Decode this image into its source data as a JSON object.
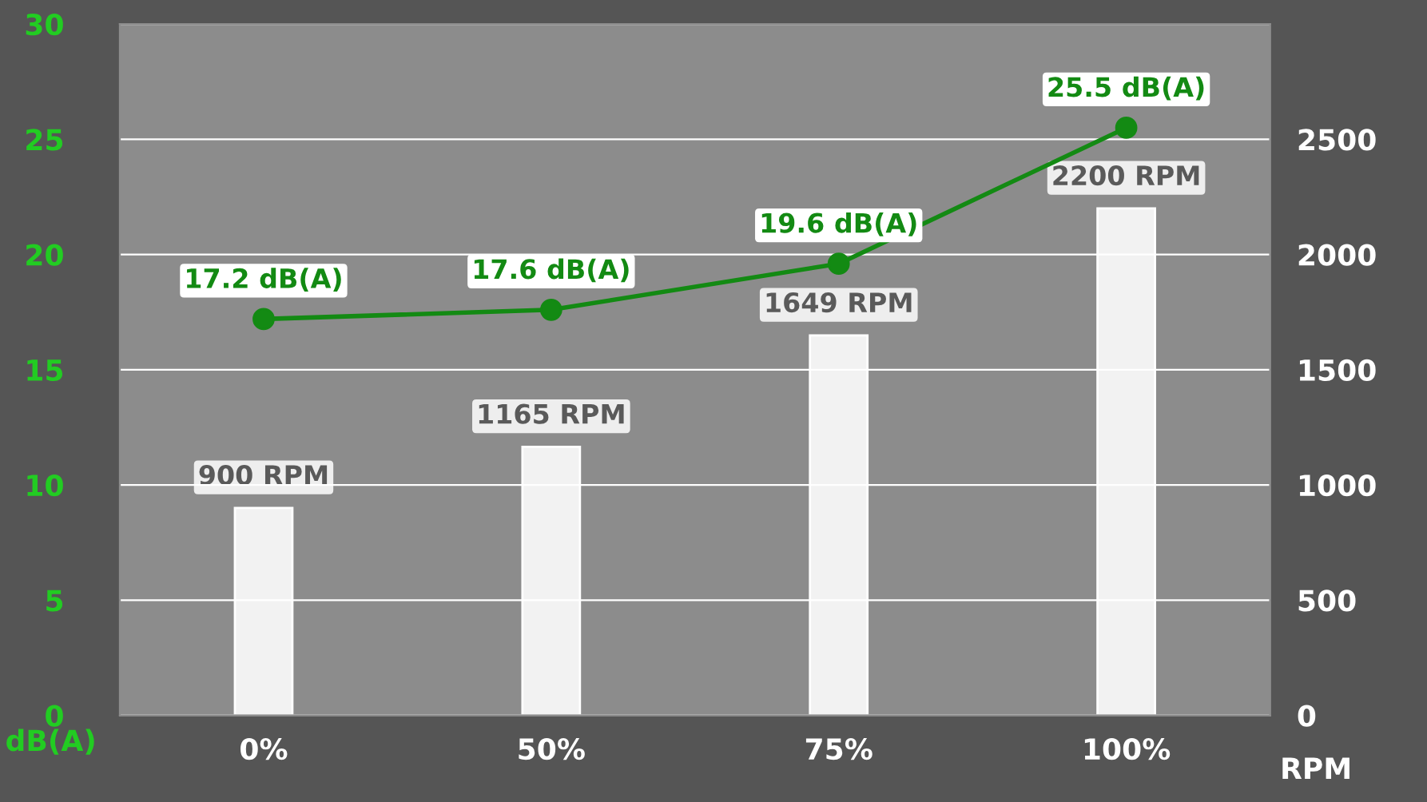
{
  "chart_data": {
    "type": "bar",
    "categories": [
      "0%",
      "50%",
      "75%",
      "100%"
    ],
    "series": [
      {
        "axis": "y2",
        "color": "#f2f2f2",
        "values": [
          900,
          1165,
          1649,
          2200
        ],
        "value_labels": [
          "900 RPM",
          "1165 RPM",
          "1649 RPM",
          "2200 RPM"
        ]
      },
      {
        "type": "line",
        "axis": "y",
        "color": "#138a13",
        "marker": "circle",
        "values": [
          17.2,
          17.6,
          19.6,
          25.5
        ],
        "value_labels": [
          "17.2 dB(A)",
          "17.6 dB(A)",
          "19.6 dB(A)",
          "25.5 dB(A)"
        ]
      }
    ],
    "ylabel": "dB(A)",
    "y2label": "RPM",
    "ylim": [
      0,
      30
    ],
    "yticks": [
      0,
      5,
      10,
      15,
      20,
      25,
      30
    ],
    "y2lim": [
      0,
      3000
    ],
    "y2ticks": [
      0,
      500,
      1000,
      1500,
      2000,
      2500
    ],
    "grid": "y",
    "legend": false
  }
}
